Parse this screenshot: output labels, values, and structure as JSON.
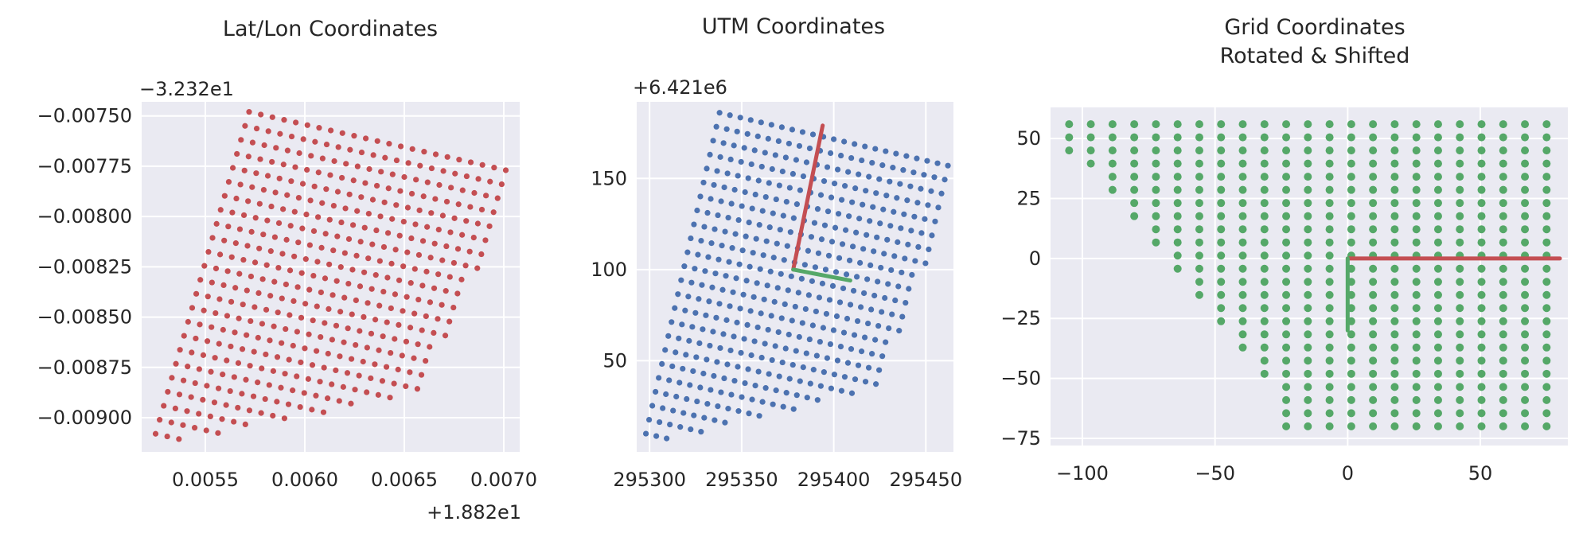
{
  "figure": {
    "background": "#ffffff",
    "plot_background": "#eaeaf2",
    "grid_color": "#ffffff"
  },
  "chart_data": [
    {
      "type": "scatter",
      "title": "Lat/Lon Coordinates",
      "x_offset_label": "+1.882e1",
      "y_offset_label": "−3.232e1",
      "x_ticks": [
        0.0055,
        0.006,
        0.0065,
        0.007
      ],
      "x_tick_labels": [
        "0.0055",
        "0.0060",
        "0.0065",
        "0.0070"
      ],
      "y_ticks": [
        -0.0075,
        -0.00775,
        -0.008,
        -0.00825,
        -0.0085,
        -0.00875,
        -0.009
      ],
      "y_tick_labels": [
        "−0.00750",
        "−0.00775",
        "−0.00800",
        "−0.00825",
        "−0.00850",
        "−0.00875",
        "−0.00900"
      ],
      "xlim": [
        0.00518,
        0.00708
      ],
      "ylim": [
        -0.00917,
        -0.00743
      ],
      "grid": true,
      "point_color": "#c44e52",
      "grid_shape": {
        "cols": 23,
        "rows": 24
      },
      "corners": {
        "top_left": [
          0.00572,
          -0.00748
        ],
        "top_right": [
          0.00701,
          -0.00777
        ],
        "bottom_left": [
          0.00525,
          -0.00908
        ]
      },
      "missing_region": "lower-right"
    },
    {
      "type": "scatter",
      "title": "UTM Coordinates",
      "x_offset_label": "",
      "y_offset_label": "+6.421e6",
      "x_ticks": [
        295300,
        295350,
        295400,
        295450
      ],
      "x_tick_labels": [
        "295300",
        "295350",
        "295400",
        "295450"
      ],
      "y_ticks": [
        50,
        100,
        150
      ],
      "y_tick_labels": [
        "50",
        "100",
        "150"
      ],
      "xlim": [
        295293,
        295465
      ],
      "ylim": [
        0,
        192
      ],
      "grid": true,
      "point_color": "#4c72b0",
      "grid_shape": {
        "cols": 23,
        "rows": 24
      },
      "corners": {
        "top_left": [
          295338,
          186
        ],
        "top_right": [
          295462,
          157
        ],
        "bottom_left": [
          295298,
          10
        ]
      },
      "missing_region": "lower-right",
      "axes_lines": [
        {
          "color": "#c44e52",
          "from": [
            295378,
            100
          ],
          "to": [
            295394,
            179
          ]
        },
        {
          "color": "#55a868",
          "from": [
            295378,
            100
          ],
          "to": [
            295409,
            94
          ]
        }
      ]
    },
    {
      "type": "scatter",
      "title": "Grid Coordinates",
      "subtitle": "Rotated & Shifted",
      "x_offset_label": "",
      "y_offset_label": "",
      "x_ticks": [
        -100,
        -50,
        0,
        50
      ],
      "x_tick_labels": [
        "−100",
        "−50",
        "0",
        "50"
      ],
      "y_ticks": [
        50,
        25,
        0,
        -25,
        -50,
        -75
      ],
      "y_tick_labels": [
        "50",
        "25",
        "0",
        "−25",
        "−50",
        "−75"
      ],
      "xlim": [
        -112,
        83
      ],
      "ylim": [
        -78,
        63
      ],
      "grid": true,
      "point_color": "#55a868",
      "grid_shape": {
        "cols": 23,
        "rows": 24
      },
      "corners": {
        "top_left": [
          -105,
          56
        ],
        "top_right": [
          75,
          56
        ],
        "bottom_left": [
          -105,
          -70
        ]
      },
      "missing_region": "lower-left",
      "axes_lines": [
        {
          "color": "#c44e52",
          "from": [
            0,
            0
          ],
          "to": [
            80,
            0
          ]
        },
        {
          "color": "#55a868",
          "from": [
            0,
            0
          ],
          "to": [
            0,
            -30
          ]
        }
      ]
    }
  ]
}
